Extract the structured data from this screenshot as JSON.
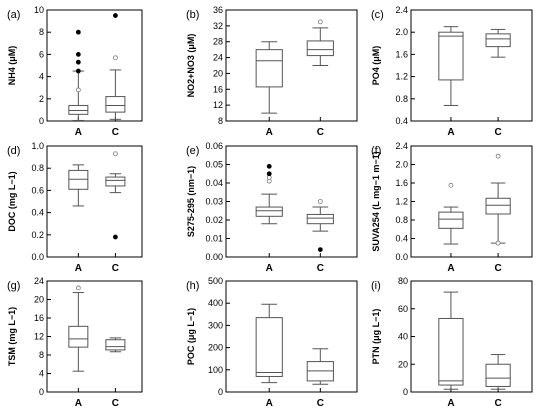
{
  "figure": {
    "background": "#ffffff",
    "line_color": "#555555",
    "box_fill": "#ffffff",
    "outlier_open": "#ffffff",
    "outlier_filled": "#000000"
  },
  "chart_data": [
    {
      "type": "box",
      "panel": "(a)",
      "ylabel": "NH4 (μM)",
      "ylim": [
        0,
        10
      ],
      "yticks": [
        "0",
        "2",
        "4",
        "6",
        "8",
        "10"
      ],
      "categories": [
        "A",
        "C"
      ],
      "boxes": [
        {
          "category": "A",
          "whisker_low": 0.05,
          "q1": 0.6,
          "median": 0.95,
          "q3": 1.4,
          "whisker_high": 4.5,
          "outliers": [
            {
              "value": 2.8,
              "marker": "open"
            },
            {
              "value": 4.5,
              "marker": "filled"
            },
            {
              "value": 5.3,
              "marker": "filled"
            },
            {
              "value": 6.0,
              "marker": "filled"
            },
            {
              "value": 8.0,
              "marker": "filled"
            }
          ]
        },
        {
          "category": "C",
          "whisker_low": 0.15,
          "q1": 0.8,
          "median": 1.4,
          "q3": 2.2,
          "whisker_high": 4.6,
          "outliers": [
            {
              "value": 5.7,
              "marker": "open"
            },
            {
              "value": 9.5,
              "marker": "filled"
            }
          ]
        }
      ]
    },
    {
      "type": "box",
      "panel": "(b)",
      "ylabel": "NO2+NO3 (μM)",
      "ylim": [
        8,
        36
      ],
      "yticks": [
        "8",
        "12",
        "16",
        "20",
        "24",
        "28",
        "32",
        "36"
      ],
      "categories": [
        "A",
        "C"
      ],
      "boxes": [
        {
          "category": "A",
          "whisker_low": 10.0,
          "q1": 16.6,
          "median": 23.2,
          "q3": 26.0,
          "whisker_high": 28.0,
          "outliers": []
        },
        {
          "category": "C",
          "whisker_low": 22.0,
          "q1": 24.5,
          "median": 26.0,
          "q3": 28.2,
          "whisker_high": 31.5,
          "outliers": [
            {
              "value": 33.0,
              "marker": "open"
            }
          ]
        }
      ]
    },
    {
      "type": "box",
      "panel": "(c)",
      "ylabel": "PO4 (μM)",
      "ylim": [
        0.4,
        2.4
      ],
      "yticks": [
        "0.4",
        "0.8",
        "1.2",
        "1.6",
        "2.0",
        "2.4"
      ],
      "categories": [
        "A",
        "C"
      ],
      "boxes": [
        {
          "category": "A",
          "whisker_low": 0.68,
          "q1": 1.14,
          "median": 1.93,
          "q3": 2.0,
          "whisker_high": 2.1,
          "outliers": []
        },
        {
          "category": "C",
          "whisker_low": 1.55,
          "q1": 1.74,
          "median": 1.88,
          "q3": 1.97,
          "whisker_high": 2.05,
          "outliers": []
        }
      ]
    },
    {
      "type": "box",
      "panel": "(d)",
      "ylabel": "DOC (mg L−1)",
      "ylim": [
        0.0,
        1.0
      ],
      "yticks": [
        "0.0",
        "0.2",
        "0.4",
        "0.6",
        "0.8",
        "1.0"
      ],
      "categories": [
        "A",
        "C"
      ],
      "boxes": [
        {
          "category": "A",
          "whisker_low": 0.46,
          "q1": 0.61,
          "median": 0.7,
          "q3": 0.78,
          "whisker_high": 0.83,
          "outliers": []
        },
        {
          "category": "C",
          "whisker_low": 0.58,
          "q1": 0.64,
          "median": 0.69,
          "q3": 0.72,
          "whisker_high": 0.75,
          "outliers": [
            {
              "value": 0.93,
              "marker": "open"
            },
            {
              "value": 0.18,
              "marker": "filled"
            }
          ]
        }
      ]
    },
    {
      "type": "box",
      "panel": "(e)",
      "ylabel": "S275-295 (nm−1)",
      "ylim": [
        0.0,
        0.06
      ],
      "yticks": [
        "0.00",
        "0.01",
        "0.02",
        "0.03",
        "0.04",
        "0.05",
        "0.06"
      ],
      "categories": [
        "A",
        "C"
      ],
      "boxes": [
        {
          "category": "A",
          "whisker_low": 0.018,
          "q1": 0.022,
          "median": 0.025,
          "q3": 0.027,
          "whisker_high": 0.034,
          "outliers": [
            {
              "value": 0.041,
              "marker": "open"
            },
            {
              "value": 0.043,
              "marker": "open"
            },
            {
              "value": 0.045,
              "marker": "filled"
            },
            {
              "value": 0.049,
              "marker": "filled"
            }
          ]
        },
        {
          "category": "C",
          "whisker_low": 0.014,
          "q1": 0.018,
          "median": 0.021,
          "q3": 0.023,
          "whisker_high": 0.027,
          "outliers": [
            {
              "value": 0.03,
              "marker": "open"
            },
            {
              "value": 0.004,
              "marker": "filled"
            }
          ]
        }
      ]
    },
    {
      "type": "box",
      "panel": "(f)",
      "ylabel": "SUVA254 (L mg−1 m−1)",
      "ylim": [
        0.0,
        2.4
      ],
      "yticks": [
        "0.0",
        "0.4",
        "0.8",
        "1.2",
        "1.6",
        "2.0",
        "2.4"
      ],
      "categories": [
        "A",
        "C"
      ],
      "boxes": [
        {
          "category": "A",
          "whisker_low": 0.28,
          "q1": 0.62,
          "median": 0.82,
          "q3": 0.97,
          "whisker_high": 1.08,
          "outliers": [
            {
              "value": 1.55,
              "marker": "open"
            }
          ]
        },
        {
          "category": "C",
          "whisker_low": 0.3,
          "q1": 0.93,
          "median": 1.12,
          "q3": 1.27,
          "whisker_high": 1.6,
          "outliers": [
            {
              "value": 2.18,
              "marker": "open"
            },
            {
              "value": 0.3,
              "marker": "open"
            }
          ]
        }
      ]
    },
    {
      "type": "box",
      "panel": "(g)",
      "ylabel": "TSM (mg L−1)",
      "ylim": [
        0,
        24
      ],
      "yticks": [
        "0",
        "4",
        "8",
        "12",
        "16",
        "20",
        "24"
      ],
      "categories": [
        "A",
        "C"
      ],
      "boxes": [
        {
          "category": "A",
          "whisker_low": 4.5,
          "q1": 9.7,
          "median": 11.5,
          "q3": 14.2,
          "whisker_high": 21.5,
          "outliers": [
            {
              "value": 22.5,
              "marker": "open"
            }
          ]
        },
        {
          "category": "C",
          "whisker_low": 8.7,
          "q1": 9.1,
          "median": 9.8,
          "q3": 11.3,
          "whisker_high": 11.7,
          "outliers": []
        }
      ]
    },
    {
      "type": "box",
      "panel": "(h)",
      "ylabel": "POC (μg L−1)",
      "ylim": [
        0,
        500
      ],
      "yticks": [
        "0",
        "100",
        "200",
        "300",
        "400",
        "500"
      ],
      "categories": [
        "A",
        "C"
      ],
      "boxes": [
        {
          "category": "A",
          "whisker_low": 42,
          "q1": 70,
          "median": 88,
          "q3": 335,
          "whisker_high": 395,
          "outliers": []
        },
        {
          "category": "C",
          "whisker_low": 35,
          "q1": 50,
          "median": 95,
          "q3": 137,
          "whisker_high": 195,
          "outliers": []
        }
      ]
    },
    {
      "type": "box",
      "panel": "(i)",
      "ylabel": "PTN (μg L−1)",
      "ylim": [
        0,
        80
      ],
      "yticks": [
        "0",
        "20",
        "40",
        "60",
        "80"
      ],
      "categories": [
        "A",
        "C"
      ],
      "boxes": [
        {
          "category": "A",
          "whisker_low": 2,
          "q1": 5,
          "median": 8,
          "q3": 53,
          "whisker_high": 72,
          "outliers": []
        },
        {
          "category": "C",
          "whisker_low": 2,
          "q1": 4,
          "median": 10,
          "q3": 20,
          "whisker_high": 27,
          "outliers": []
        }
      ]
    }
  ]
}
